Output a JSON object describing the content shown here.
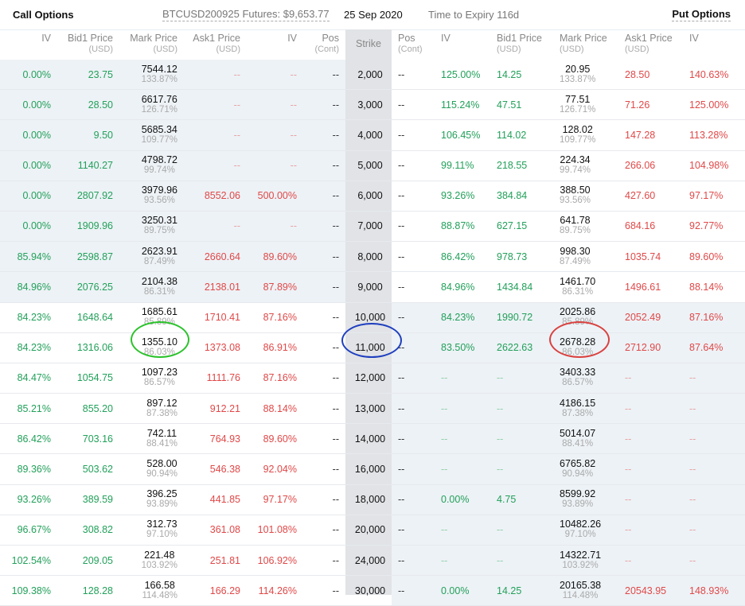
{
  "topbar": {
    "call_label": "Call Options",
    "futures": "BTCUSD200925 Futures: $9,653.77",
    "date": "25 Sep 2020",
    "expiry": "Time to Expiry 116d",
    "put_label": "Put Options"
  },
  "headers": {
    "call": {
      "iv": "IV",
      "bid": "Bid1 Price",
      "bid_unit": "(USD)",
      "mark": "Mark Price",
      "mark_unit": "(USD)",
      "ask": "Ask1 Price",
      "ask_unit": "(USD)",
      "iv2": "IV",
      "pos": "Pos",
      "pos_unit": "(Cont)"
    },
    "strike": "Strike",
    "put": {
      "pos": "Pos",
      "pos_unit": "(Cont)",
      "iv": "IV",
      "bid": "Bid1 Price",
      "bid_unit": "(USD)",
      "mark": "Mark Price",
      "mark_unit": "(USD)",
      "ask": "Ask1 Price",
      "ask_unit": "(USD)",
      "iv2": "IV"
    }
  },
  "rows": [
    {
      "itm_call": true,
      "c_iv": "0.00%",
      "c_bid": "23.75",
      "c_mark": "7544.12",
      "c_mark_iv": "133.87%",
      "c_ask": "--",
      "c_ask_iv": "--",
      "c_pos": "--",
      "strike": "2,000",
      "p_pos": "--",
      "p_iv": "125.00%",
      "p_bid": "14.25",
      "p_mark": "20.95",
      "p_mark_iv": "133.87%",
      "p_ask": "28.50",
      "p_ask_iv": "140.63%"
    },
    {
      "itm_call": true,
      "c_iv": "0.00%",
      "c_bid": "28.50",
      "c_mark": "6617.76",
      "c_mark_iv": "126.71%",
      "c_ask": "--",
      "c_ask_iv": "--",
      "c_pos": "--",
      "strike": "3,000",
      "p_pos": "--",
      "p_iv": "115.24%",
      "p_bid": "47.51",
      "p_mark": "77.51",
      "p_mark_iv": "126.71%",
      "p_ask": "71.26",
      "p_ask_iv": "125.00%"
    },
    {
      "itm_call": true,
      "c_iv": "0.00%",
      "c_bid": "9.50",
      "c_mark": "5685.34",
      "c_mark_iv": "109.77%",
      "c_ask": "--",
      "c_ask_iv": "--",
      "c_pos": "--",
      "strike": "4,000",
      "p_pos": "--",
      "p_iv": "106.45%",
      "p_bid": "114.02",
      "p_mark": "128.02",
      "p_mark_iv": "109.77%",
      "p_ask": "147.28",
      "p_ask_iv": "113.28%"
    },
    {
      "itm_call": true,
      "c_iv": "0.00%",
      "c_bid": "1140.27",
      "c_mark": "4798.72",
      "c_mark_iv": "99.74%",
      "c_ask": "--",
      "c_ask_iv": "--",
      "c_pos": "--",
      "strike": "5,000",
      "p_pos": "--",
      "p_iv": "99.11%",
      "p_bid": "218.55",
      "p_mark": "224.34",
      "p_mark_iv": "99.74%",
      "p_ask": "266.06",
      "p_ask_iv": "104.98%"
    },
    {
      "itm_call": true,
      "c_iv": "0.00%",
      "c_bid": "2807.92",
      "c_mark": "3979.96",
      "c_mark_iv": "93.56%",
      "c_ask": "8552.06",
      "c_ask_iv": "500.00%",
      "c_pos": "--",
      "strike": "6,000",
      "p_pos": "--",
      "p_iv": "93.26%",
      "p_bid": "384.84",
      "p_mark": "388.50",
      "p_mark_iv": "93.56%",
      "p_ask": "427.60",
      "p_ask_iv": "97.17%"
    },
    {
      "itm_call": true,
      "c_iv": "0.00%",
      "c_bid": "1909.96",
      "c_mark": "3250.31",
      "c_mark_iv": "89.75%",
      "c_ask": "--",
      "c_ask_iv": "--",
      "c_pos": "--",
      "strike": "7,000",
      "p_pos": "--",
      "p_iv": "88.87%",
      "p_bid": "627.15",
      "p_mark": "641.78",
      "p_mark_iv": "89.75%",
      "p_ask": "684.16",
      "p_ask_iv": "92.77%"
    },
    {
      "itm_call": true,
      "c_iv": "85.94%",
      "c_bid": "2598.87",
      "c_mark": "2623.91",
      "c_mark_iv": "87.49%",
      "c_ask": "2660.64",
      "c_ask_iv": "89.60%",
      "c_pos": "--",
      "strike": "8,000",
      "p_pos": "--",
      "p_iv": "86.42%",
      "p_bid": "978.73",
      "p_mark": "998.30",
      "p_mark_iv": "87.49%",
      "p_ask": "1035.74",
      "p_ask_iv": "89.60%"
    },
    {
      "itm_call": true,
      "c_iv": "84.96%",
      "c_bid": "2076.25",
      "c_mark": "2104.38",
      "c_mark_iv": "86.31%",
      "c_ask": "2138.01",
      "c_ask_iv": "87.89%",
      "c_pos": "--",
      "strike": "9,000",
      "p_pos": "--",
      "p_iv": "84.96%",
      "p_bid": "1434.84",
      "p_mark": "1461.70",
      "p_mark_iv": "86.31%",
      "p_ask": "1496.61",
      "p_ask_iv": "88.14%"
    },
    {
      "itm_call": false,
      "c_iv": "84.23%",
      "c_bid": "1648.64",
      "c_mark": "1685.61",
      "c_mark_iv": "85.89%",
      "c_ask": "1710.41",
      "c_ask_iv": "87.16%",
      "c_pos": "--",
      "strike": "10,000",
      "p_pos": "--",
      "p_iv": "84.23%",
      "p_bid": "1990.72",
      "p_mark": "2025.86",
      "p_mark_iv": "85.89%",
      "p_ask": "2052.49",
      "p_ask_iv": "87.16%"
    },
    {
      "itm_call": false,
      "c_iv": "84.23%",
      "c_bid": "1316.06",
      "c_mark": "1355.10",
      "c_mark_iv": "86.03%",
      "c_ask": "1373.08",
      "c_ask_iv": "86.91%",
      "c_pos": "--",
      "strike": "11,000",
      "p_pos": "--",
      "p_iv": "83.50%",
      "p_bid": "2622.63",
      "p_mark": "2678.28",
      "p_mark_iv": "86.03%",
      "p_ask": "2712.90",
      "p_ask_iv": "87.64%"
    },
    {
      "itm_call": false,
      "c_iv": "84.47%",
      "c_bid": "1054.75",
      "c_mark": "1097.23",
      "c_mark_iv": "86.57%",
      "c_ask": "1111.76",
      "c_ask_iv": "87.16%",
      "c_pos": "--",
      "strike": "12,000",
      "p_pos": "--",
      "p_iv": "--",
      "p_bid": "--",
      "p_mark": "3403.33",
      "p_mark_iv": "86.57%",
      "p_ask": "--",
      "p_ask_iv": "--"
    },
    {
      "itm_call": false,
      "c_iv": "85.21%",
      "c_bid": "855.20",
      "c_mark": "897.12",
      "c_mark_iv": "87.38%",
      "c_ask": "912.21",
      "c_ask_iv": "88.14%",
      "c_pos": "--",
      "strike": "13,000",
      "p_pos": "--",
      "p_iv": "--",
      "p_bid": "--",
      "p_mark": "4186.15",
      "p_mark_iv": "87.38%",
      "p_ask": "--",
      "p_ask_iv": "--"
    },
    {
      "itm_call": false,
      "c_iv": "86.42%",
      "c_bid": "703.16",
      "c_mark": "742.11",
      "c_mark_iv": "88.41%",
      "c_ask": "764.93",
      "c_ask_iv": "89.60%",
      "c_pos": "--",
      "strike": "14,000",
      "p_pos": "--",
      "p_iv": "--",
      "p_bid": "--",
      "p_mark": "5014.07",
      "p_mark_iv": "88.41%",
      "p_ask": "--",
      "p_ask_iv": "--"
    },
    {
      "itm_call": false,
      "c_iv": "89.36%",
      "c_bid": "503.62",
      "c_mark": "528.00",
      "c_mark_iv": "90.94%",
      "c_ask": "546.38",
      "c_ask_iv": "92.04%",
      "c_pos": "--",
      "strike": "16,000",
      "p_pos": "--",
      "p_iv": "--",
      "p_bid": "--",
      "p_mark": "6765.82",
      "p_mark_iv": "90.94%",
      "p_ask": "--",
      "p_ask_iv": "--"
    },
    {
      "itm_call": false,
      "c_iv": "93.26%",
      "c_bid": "389.59",
      "c_mark": "396.25",
      "c_mark_iv": "93.89%",
      "c_ask": "441.85",
      "c_ask_iv": "97.17%",
      "c_pos": "--",
      "strike": "18,000",
      "p_pos": "--",
      "p_iv": "0.00%",
      "p_bid": "4.75",
      "p_mark": "8599.92",
      "p_mark_iv": "93.89%",
      "p_ask": "--",
      "p_ask_iv": "--"
    },
    {
      "itm_call": false,
      "c_iv": "96.67%",
      "c_bid": "308.82",
      "c_mark": "312.73",
      "c_mark_iv": "97.10%",
      "c_ask": "361.08",
      "c_ask_iv": "101.08%",
      "c_pos": "--",
      "strike": "20,000",
      "p_pos": "--",
      "p_iv": "--",
      "p_bid": "--",
      "p_mark": "10482.26",
      "p_mark_iv": "97.10%",
      "p_ask": "--",
      "p_ask_iv": "--"
    },
    {
      "itm_call": false,
      "c_iv": "102.54%",
      "c_bid": "209.05",
      "c_mark": "221.48",
      "c_mark_iv": "103.92%",
      "c_ask": "251.81",
      "c_ask_iv": "106.92%",
      "c_pos": "--",
      "strike": "24,000",
      "p_pos": "--",
      "p_iv": "--",
      "p_bid": "--",
      "p_mark": "14322.71",
      "p_mark_iv": "103.92%",
      "p_ask": "--",
      "p_ask_iv": "--"
    },
    {
      "itm_call": false,
      "c_iv": "109.38%",
      "c_bid": "128.28",
      "c_mark": "166.58",
      "c_mark_iv": "114.48%",
      "c_ask": "166.29",
      "c_ask_iv": "114.26%",
      "c_pos": "--",
      "strike": "30,000",
      "p_pos": "--",
      "p_iv": "0.00%",
      "p_bid": "14.25",
      "p_mark": "20165.38",
      "p_mark_iv": "114.48%",
      "p_ask": "20543.95",
      "p_ask_iv": "148.93%"
    }
  ],
  "highlight_colors": {
    "call_mark": "#2bc22b",
    "strike": "#1f3fbf",
    "put_mark": "#d9413f"
  }
}
